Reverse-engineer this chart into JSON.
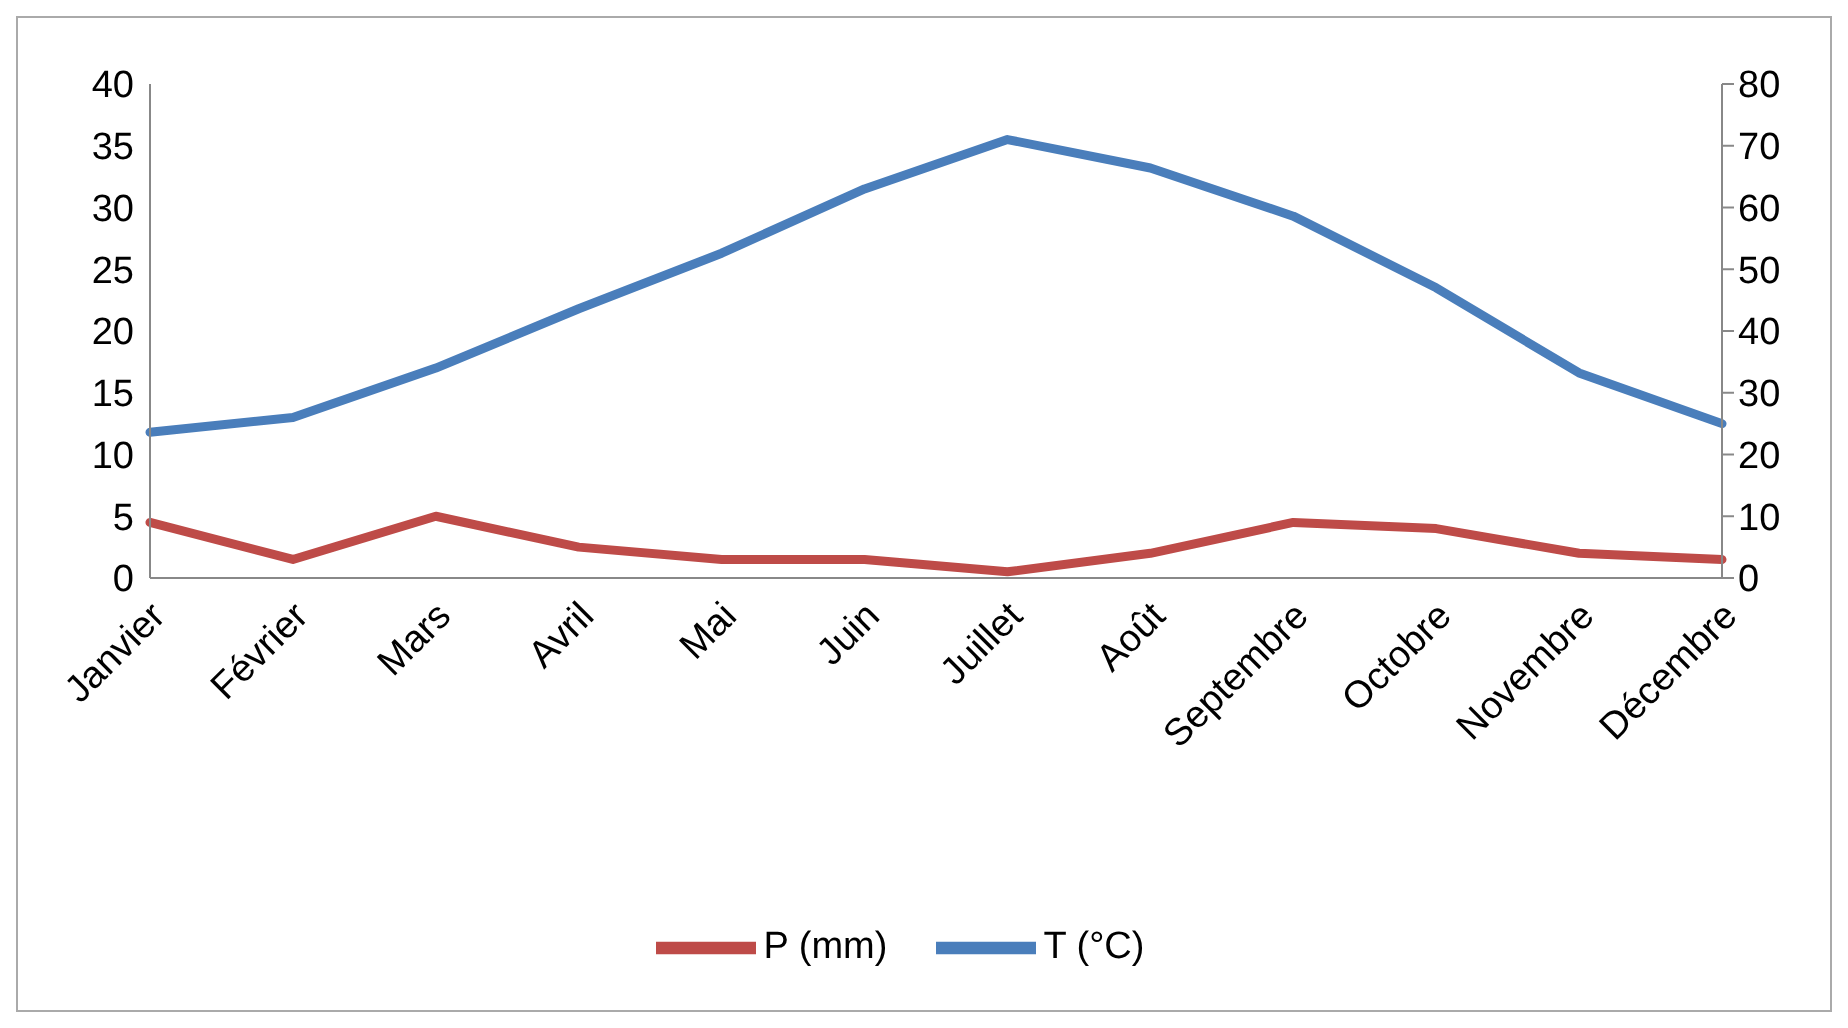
{
  "chart_data": {
    "type": "line",
    "categories": [
      "Janvier",
      "Février",
      "Mars",
      "Avril",
      "Mai",
      "Juin",
      "Juillet",
      "Août",
      "Septembre",
      "Octobre",
      "Novembre",
      "Décembre"
    ],
    "series": [
      {
        "name": "T (°C)",
        "color": "#4a7ebb",
        "values": [
          11.8,
          13,
          17,
          21.8,
          26.3,
          31.5,
          35.5,
          33.2,
          29.3,
          23.5,
          16.6,
          12.5
        ]
      },
      {
        "name": "P (mm)",
        "color": "#be4b48",
        "axis": "y2",
        "values": [
          9,
          3,
          10,
          5,
          3,
          3,
          1,
          4,
          9,
          8,
          4,
          3
        ]
      }
    ],
    "ylim": [
      0,
      40
    ],
    "yticks": [
      0,
      5,
      10,
      15,
      20,
      25,
      30,
      35,
      40
    ],
    "y2lim": [
      0,
      80
    ],
    "y2ticks": [
      0,
      10,
      20,
      30,
      40,
      50,
      60,
      70,
      80
    ],
    "grid": false,
    "legend": "bottom",
    "marker": "none",
    "line_style": "solid"
  }
}
